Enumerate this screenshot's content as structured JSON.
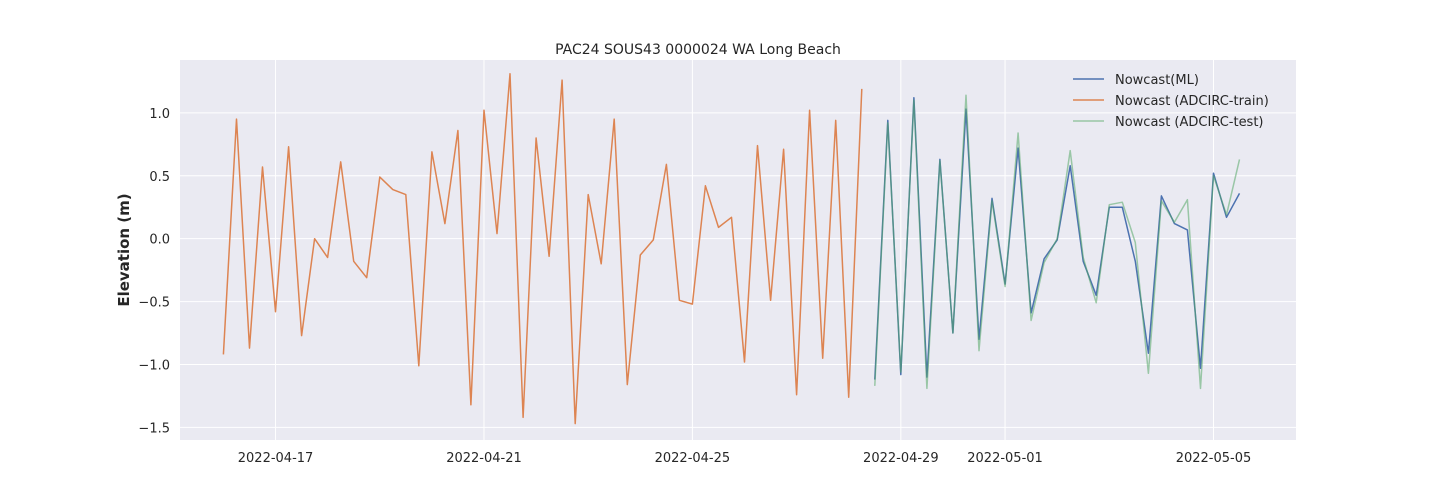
{
  "chart_data": {
    "type": "line",
    "title": "PAC24 SOUS43 0000024 WA Long Beach",
    "xlabel": "",
    "ylabel": "Elevation (m)",
    "x_type": "date",
    "xlim": [
      "2022-04-15T04:00",
      "2022-05-06T14:00"
    ],
    "ylim": [
      -1.6,
      1.42
    ],
    "x_ticks": [
      "2022-04-17",
      "2022-04-21",
      "2022-04-25",
      "2022-04-29",
      "2022-05-01",
      "2022-05-05"
    ],
    "y_ticks": [
      {
        "value": 1.0,
        "label": "1.0"
      },
      {
        "value": 0.5,
        "label": "0.5"
      },
      {
        "value": 0.0,
        "label": "0.0"
      },
      {
        "value": -0.5,
        "label": "−0.5"
      },
      {
        "value": -1.0,
        "label": "−1.0"
      },
      {
        "value": -1.5,
        "label": "−1.5"
      }
    ],
    "grid": true,
    "legend_position": "top-right",
    "series": [
      {
        "name": "Nowcast(ML)",
        "color": "#4c72b0",
        "opacity": 1,
        "x": [
          "2022-04-28T12:00",
          "2022-04-28T18:00",
          "2022-04-29T00:00",
          "2022-04-29T06:00",
          "2022-04-29T12:00",
          "2022-04-29T18:00",
          "2022-04-30T00:00",
          "2022-04-30T06:00",
          "2022-04-30T12:00",
          "2022-04-30T18:00",
          "2022-05-01T00:00",
          "2022-05-01T06:00",
          "2022-05-01T12:00",
          "2022-05-01T18:00",
          "2022-05-02T00:00",
          "2022-05-02T06:00",
          "2022-05-02T12:00",
          "2022-05-02T18:00",
          "2022-05-03T00:00",
          "2022-05-03T06:00",
          "2022-05-03T12:00",
          "2022-05-03T18:00",
          "2022-05-04T00:00",
          "2022-05-04T06:00",
          "2022-05-04T12:00",
          "2022-05-04T18:00",
          "2022-05-05T00:00",
          "2022-05-05T06:00",
          "2022-05-05T12:00"
        ],
        "y": [
          -1.12,
          0.94,
          -1.08,
          1.12,
          -1.1,
          0.63,
          -0.75,
          1.03,
          -0.8,
          0.32,
          -0.36,
          0.72,
          -0.59,
          -0.16,
          -0.01,
          0.58,
          -0.18,
          -0.45,
          0.25,
          0.25,
          -0.18,
          -0.91,
          0.34,
          0.12,
          0.07,
          -1.03,
          0.52,
          0.17,
          0.36
        ]
      },
      {
        "name": "Nowcast (ADCIRC-train)",
        "color": "#dd8452",
        "opacity": 1,
        "x": [
          "2022-04-16T00:00",
          "2022-04-16T06:00",
          "2022-04-16T12:00",
          "2022-04-16T18:00",
          "2022-04-17T00:00",
          "2022-04-17T06:00",
          "2022-04-17T12:00",
          "2022-04-17T18:00",
          "2022-04-18T00:00",
          "2022-04-18T06:00",
          "2022-04-18T12:00",
          "2022-04-18T18:00",
          "2022-04-19T00:00",
          "2022-04-19T06:00",
          "2022-04-19T12:00",
          "2022-04-19T18:00",
          "2022-04-20T00:00",
          "2022-04-20T06:00",
          "2022-04-20T12:00",
          "2022-04-20T18:00",
          "2022-04-21T00:00",
          "2022-04-21T06:00",
          "2022-04-21T12:00",
          "2022-04-21T18:00",
          "2022-04-22T00:00",
          "2022-04-22T06:00",
          "2022-04-22T12:00",
          "2022-04-22T18:00",
          "2022-04-23T00:00",
          "2022-04-23T06:00",
          "2022-04-23T12:00",
          "2022-04-23T18:00",
          "2022-04-24T00:00",
          "2022-04-24T06:00",
          "2022-04-24T12:00",
          "2022-04-24T18:00",
          "2022-04-25T00:00",
          "2022-04-25T06:00",
          "2022-04-25T12:00",
          "2022-04-25T18:00",
          "2022-04-26T00:00",
          "2022-04-26T06:00",
          "2022-04-26T12:00",
          "2022-04-26T18:00",
          "2022-04-27T00:00",
          "2022-04-27T06:00",
          "2022-04-27T12:00",
          "2022-04-27T18:00",
          "2022-04-28T00:00",
          "2022-04-28T06:00"
        ],
        "y": [
          -0.92,
          0.95,
          -0.87,
          0.57,
          -0.58,
          0.73,
          -0.77,
          0.0,
          -0.15,
          0.61,
          -0.18,
          -0.31,
          0.49,
          0.39,
          0.35,
          -1.01,
          0.69,
          0.12,
          0.86,
          -1.32,
          1.02,
          0.04,
          1.31,
          -1.42,
          0.8,
          -0.14,
          1.26,
          -1.47,
          0.35,
          -0.2,
          0.95,
          -1.16,
          -0.13,
          -0.01,
          0.59,
          -0.49,
          -0.52,
          0.42,
          0.09,
          0.17,
          -0.98,
          0.74,
          -0.49,
          0.71,
          -1.24,
          1.02,
          -0.95,
          0.94,
          -1.26,
          1.19
        ]
      },
      {
        "name": "Nowcast (ADCIRC-test)",
        "color": "#55a868",
        "opacity": 0.55,
        "x": [
          "2022-04-28T12:00",
          "2022-04-28T18:00",
          "2022-04-29T00:00",
          "2022-04-29T06:00",
          "2022-04-29T12:00",
          "2022-04-29T18:00",
          "2022-04-30T00:00",
          "2022-04-30T06:00",
          "2022-04-30T12:00",
          "2022-04-30T18:00",
          "2022-05-01T00:00",
          "2022-05-01T06:00",
          "2022-05-01T12:00",
          "2022-05-01T18:00",
          "2022-05-02T00:00",
          "2022-05-02T06:00",
          "2022-05-02T12:00",
          "2022-05-02T18:00",
          "2022-05-03T00:00",
          "2022-05-03T06:00",
          "2022-05-03T12:00",
          "2022-05-03T18:00",
          "2022-05-04T00:00",
          "2022-05-04T06:00",
          "2022-05-04T12:00",
          "2022-05-04T18:00",
          "2022-05-05T00:00",
          "2022-05-05T06:00",
          "2022-05-05T12:00"
        ],
        "y": [
          -1.17,
          0.92,
          -1.06,
          1.1,
          -1.19,
          0.62,
          -0.75,
          1.14,
          -0.89,
          0.3,
          -0.38,
          0.84,
          -0.65,
          -0.19,
          0.0,
          0.7,
          -0.15,
          -0.51,
          0.27,
          0.29,
          -0.03,
          -1.07,
          0.3,
          0.13,
          0.31,
          -1.19,
          0.5,
          0.19,
          0.63
        ]
      }
    ]
  }
}
